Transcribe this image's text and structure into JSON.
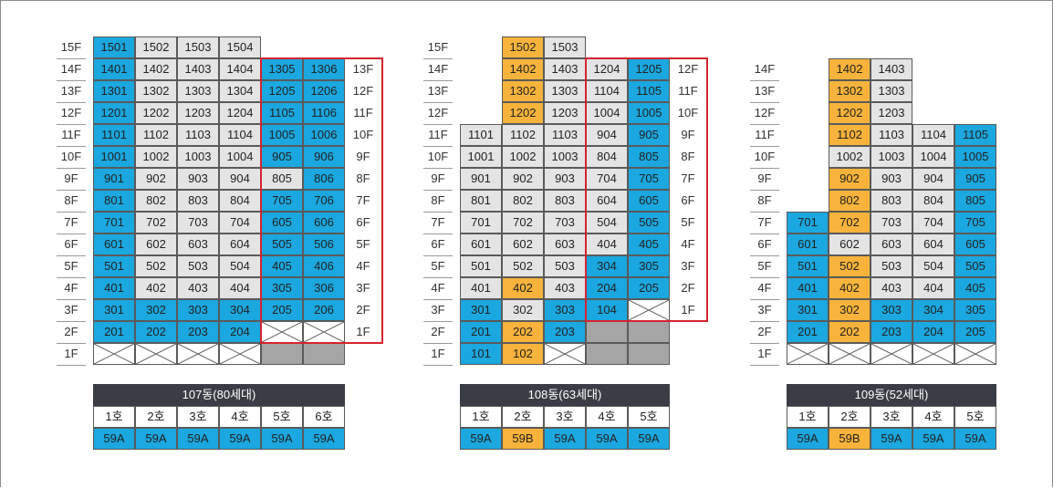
{
  "colors": {
    "unit_blue": "#1ba7df",
    "unit_orange": "#f7b33b",
    "unit_gray": "#e4e4e4",
    "unit_dark": "#a5a5a5",
    "highlight_red": "#d6232f",
    "title_bg": "#3a3d45"
  },
  "buildings": [
    {
      "title": "107동(80세대)",
      "lines": [
        "1호",
        "2호",
        "3호",
        "4호",
        "5호",
        "6호"
      ],
      "types": [
        "59A",
        "59A",
        "59A",
        "59A",
        "59A",
        "59A"
      ],
      "type_colors": [
        "blue",
        "blue",
        "blue",
        "blue",
        "blue",
        "blue"
      ],
      "floor_labels": [
        "15F",
        "14F",
        "13F",
        "12F",
        "11F",
        "10F",
        "9F",
        "8F",
        "7F",
        "6F",
        "5F",
        "4F",
        "3F",
        "2F",
        "1F"
      ],
      "rows": [
        [
          [
            "1501",
            "blue"
          ],
          [
            "1502",
            "gray"
          ],
          [
            "1503",
            "gray"
          ],
          [
            "1504",
            "gray"
          ],
          null,
          null
        ],
        [
          [
            "1401",
            "blue"
          ],
          [
            "1402",
            "gray"
          ],
          [
            "1403",
            "gray"
          ],
          [
            "1404",
            "gray"
          ],
          [
            "1305",
            "blue"
          ],
          [
            "1306",
            "blue"
          ]
        ],
        [
          [
            "1301",
            "blue"
          ],
          [
            "1302",
            "gray"
          ],
          [
            "1303",
            "gray"
          ],
          [
            "1304",
            "gray"
          ],
          [
            "1205",
            "blue"
          ],
          [
            "1206",
            "blue"
          ]
        ],
        [
          [
            "1201",
            "blue"
          ],
          [
            "1202",
            "gray"
          ],
          [
            "1203",
            "gray"
          ],
          [
            "1204",
            "gray"
          ],
          [
            "1105",
            "blue"
          ],
          [
            "1106",
            "blue"
          ]
        ],
        [
          [
            "1101",
            "blue"
          ],
          [
            "1102",
            "gray"
          ],
          [
            "1103",
            "gray"
          ],
          [
            "1104",
            "gray"
          ],
          [
            "1005",
            "blue"
          ],
          [
            "1006",
            "blue"
          ]
        ],
        [
          [
            "1001",
            "blue"
          ],
          [
            "1002",
            "gray"
          ],
          [
            "1003",
            "gray"
          ],
          [
            "1004",
            "gray"
          ],
          [
            "905",
            "blue"
          ],
          [
            "906",
            "blue"
          ]
        ],
        [
          [
            "901",
            "blue"
          ],
          [
            "902",
            "gray"
          ],
          [
            "903",
            "gray"
          ],
          [
            "904",
            "gray"
          ],
          [
            "805",
            "gray"
          ],
          [
            "806",
            "blue"
          ]
        ],
        [
          [
            "801",
            "blue"
          ],
          [
            "802",
            "gray"
          ],
          [
            "803",
            "gray"
          ],
          [
            "804",
            "gray"
          ],
          [
            "705",
            "blue"
          ],
          [
            "706",
            "blue"
          ]
        ],
        [
          [
            "701",
            "blue"
          ],
          [
            "702",
            "gray"
          ],
          [
            "703",
            "gray"
          ],
          [
            "704",
            "gray"
          ],
          [
            "605",
            "blue"
          ],
          [
            "606",
            "blue"
          ]
        ],
        [
          [
            "601",
            "blue"
          ],
          [
            "602",
            "gray"
          ],
          [
            "603",
            "gray"
          ],
          [
            "604",
            "gray"
          ],
          [
            "505",
            "blue"
          ],
          [
            "506",
            "blue"
          ]
        ],
        [
          [
            "501",
            "blue"
          ],
          [
            "502",
            "gray"
          ],
          [
            "503",
            "gray"
          ],
          [
            "504",
            "gray"
          ],
          [
            "405",
            "blue"
          ],
          [
            "406",
            "blue"
          ]
        ],
        [
          [
            "401",
            "blue"
          ],
          [
            "402",
            "gray"
          ],
          [
            "403",
            "gray"
          ],
          [
            "404",
            "gray"
          ],
          [
            "305",
            "blue"
          ],
          [
            "306",
            "blue"
          ]
        ],
        [
          [
            "301",
            "blue"
          ],
          [
            "302",
            "blue"
          ],
          [
            "303",
            "blue"
          ],
          [
            "304",
            "blue"
          ],
          [
            "205",
            "blue"
          ],
          [
            "206",
            "blue"
          ]
        ],
        [
          [
            "201",
            "blue"
          ],
          [
            "202",
            "blue"
          ],
          [
            "203",
            "blue"
          ],
          [
            "204",
            "blue"
          ],
          [
            "",
            "x"
          ],
          [
            "",
            "x"
          ]
        ],
        [
          [
            "",
            "x"
          ],
          [
            "",
            "x"
          ],
          [
            "",
            "x"
          ],
          [
            "",
            "x"
          ],
          [
            "",
            "dark"
          ],
          [
            "",
            "dark"
          ]
        ]
      ],
      "side_floor_labels": [
        "13F",
        "12F",
        "11F",
        "10F",
        "9F",
        "8F",
        "7F",
        "6F",
        "5F",
        "4F",
        "3F",
        "2F",
        "1F"
      ]
    },
    {
      "title": "108동(63세대)",
      "lines": [
        "1호",
        "2호",
        "3호",
        "4호",
        "5호"
      ],
      "types": [
        "59A",
        "59B",
        "59A",
        "59A",
        "59A"
      ],
      "type_colors": [
        "blue",
        "orange",
        "blue",
        "blue",
        "blue"
      ],
      "floor_labels": [
        "15F",
        "14F",
        "13F",
        "12F",
        "11F",
        "10F",
        "9F",
        "8F",
        "7F",
        "6F",
        "5F",
        "4F",
        "3F",
        "2F",
        "1F"
      ],
      "rows": [
        [
          null,
          [
            "1502",
            "orange"
          ],
          [
            "1503",
            "gray"
          ],
          null,
          null
        ],
        [
          null,
          [
            "1402",
            "orange"
          ],
          [
            "1403",
            "gray"
          ],
          [
            "1204",
            "gray"
          ],
          [
            "1205",
            "blue"
          ]
        ],
        [
          null,
          [
            "1302",
            "orange"
          ],
          [
            "1303",
            "gray"
          ],
          [
            "1104",
            "gray"
          ],
          [
            "1105",
            "blue"
          ]
        ],
        [
          null,
          [
            "1202",
            "orange"
          ],
          [
            "1203",
            "gray"
          ],
          [
            "1004",
            "gray"
          ],
          [
            "1005",
            "blue"
          ]
        ],
        [
          [
            "1101",
            "gray"
          ],
          [
            "1102",
            "gray"
          ],
          [
            "1103",
            "gray"
          ],
          [
            "904",
            "gray"
          ],
          [
            "905",
            "blue"
          ]
        ],
        [
          [
            "1001",
            "gray"
          ],
          [
            "1002",
            "gray"
          ],
          [
            "1003",
            "gray"
          ],
          [
            "804",
            "gray"
          ],
          [
            "805",
            "blue"
          ]
        ],
        [
          [
            "901",
            "gray"
          ],
          [
            "902",
            "gray"
          ],
          [
            "903",
            "gray"
          ],
          [
            "704",
            "gray"
          ],
          [
            "705",
            "blue"
          ]
        ],
        [
          [
            "801",
            "gray"
          ],
          [
            "802",
            "gray"
          ],
          [
            "803",
            "gray"
          ],
          [
            "604",
            "gray"
          ],
          [
            "605",
            "blue"
          ]
        ],
        [
          [
            "701",
            "gray"
          ],
          [
            "702",
            "gray"
          ],
          [
            "703",
            "gray"
          ],
          [
            "504",
            "gray"
          ],
          [
            "505",
            "blue"
          ]
        ],
        [
          [
            "601",
            "gray"
          ],
          [
            "602",
            "gray"
          ],
          [
            "603",
            "gray"
          ],
          [
            "404",
            "gray"
          ],
          [
            "405",
            "blue"
          ]
        ],
        [
          [
            "501",
            "gray"
          ],
          [
            "502",
            "gray"
          ],
          [
            "503",
            "gray"
          ],
          [
            "304",
            "blue"
          ],
          [
            "305",
            "blue"
          ]
        ],
        [
          [
            "401",
            "gray"
          ],
          [
            "402",
            "orange"
          ],
          [
            "403",
            "gray"
          ],
          [
            "204",
            "blue"
          ],
          [
            "205",
            "blue"
          ]
        ],
        [
          [
            "301",
            "blue"
          ],
          [
            "302",
            "gray"
          ],
          [
            "303",
            "blue"
          ],
          [
            "104",
            "blue"
          ],
          [
            "",
            "x"
          ]
        ],
        [
          [
            "201",
            "blue"
          ],
          [
            "202",
            "orange"
          ],
          [
            "203",
            "blue"
          ],
          [
            "",
            "dark"
          ],
          [
            "",
            "dark"
          ]
        ],
        [
          [
            "101",
            "blue"
          ],
          [
            "102",
            "orange"
          ],
          [
            "",
            "x"
          ],
          [
            "",
            "dark"
          ],
          [
            "",
            "dark"
          ]
        ]
      ],
      "side_floor_labels": [
        "12F",
        "11F",
        "10F",
        "9F",
        "8F",
        "7F",
        "6F",
        "5F",
        "4F",
        "3F",
        "2F",
        "1F"
      ]
    },
    {
      "title": "109동(52세대)",
      "lines": [
        "1호",
        "2호",
        "3호",
        "4호",
        "5호"
      ],
      "types": [
        "59A",
        "59B",
        "59A",
        "59A",
        "59A"
      ],
      "type_colors": [
        "blue",
        "orange",
        "blue",
        "blue",
        "blue"
      ],
      "floor_labels": [
        "14F",
        "13F",
        "12F",
        "11F",
        "10F",
        "9F",
        "8F",
        "7F",
        "6F",
        "5F",
        "4F",
        "3F",
        "2F",
        "1F"
      ],
      "rows": [
        [
          null,
          [
            "1402",
            "orange"
          ],
          [
            "1403",
            "gray"
          ],
          null,
          null
        ],
        [
          null,
          [
            "1302",
            "orange"
          ],
          [
            "1303",
            "gray"
          ],
          null,
          null
        ],
        [
          null,
          [
            "1202",
            "orange"
          ],
          [
            "1203",
            "gray"
          ],
          null,
          null
        ],
        [
          null,
          [
            "1102",
            "orange"
          ],
          [
            "1103",
            "gray"
          ],
          [
            "1104",
            "gray"
          ],
          [
            "1105",
            "blue"
          ]
        ],
        [
          null,
          [
            "1002",
            "gray"
          ],
          [
            "1003",
            "gray"
          ],
          [
            "1004",
            "gray"
          ],
          [
            "1005",
            "blue"
          ]
        ],
        [
          null,
          [
            "902",
            "orange"
          ],
          [
            "903",
            "gray"
          ],
          [
            "904",
            "gray"
          ],
          [
            "905",
            "blue"
          ]
        ],
        [
          null,
          [
            "802",
            "orange"
          ],
          [
            "803",
            "gray"
          ],
          [
            "804",
            "gray"
          ],
          [
            "805",
            "blue"
          ]
        ],
        [
          [
            "701",
            "blue"
          ],
          [
            "702",
            "orange"
          ],
          [
            "703",
            "gray"
          ],
          [
            "704",
            "gray"
          ],
          [
            "705",
            "blue"
          ]
        ],
        [
          [
            "601",
            "blue"
          ],
          [
            "602",
            "gray"
          ],
          [
            "603",
            "gray"
          ],
          [
            "604",
            "gray"
          ],
          [
            "605",
            "blue"
          ]
        ],
        [
          [
            "501",
            "blue"
          ],
          [
            "502",
            "orange"
          ],
          [
            "503",
            "gray"
          ],
          [
            "504",
            "gray"
          ],
          [
            "505",
            "blue"
          ]
        ],
        [
          [
            "401",
            "blue"
          ],
          [
            "402",
            "orange"
          ],
          [
            "403",
            "gray"
          ],
          [
            "404",
            "gray"
          ],
          [
            "405",
            "blue"
          ]
        ],
        [
          [
            "301",
            "blue"
          ],
          [
            "302",
            "orange"
          ],
          [
            "303",
            "blue"
          ],
          [
            "304",
            "blue"
          ],
          [
            "305",
            "blue"
          ]
        ],
        [
          [
            "201",
            "blue"
          ],
          [
            "202",
            "orange"
          ],
          [
            "203",
            "blue"
          ],
          [
            "204",
            "blue"
          ],
          [
            "205",
            "blue"
          ]
        ],
        [
          [
            "",
            "x"
          ],
          [
            "",
            "x"
          ],
          [
            "",
            "x"
          ],
          [
            "",
            "x"
          ],
          [
            "",
            "x"
          ]
        ]
      ],
      "side_floor_labels": []
    }
  ]
}
